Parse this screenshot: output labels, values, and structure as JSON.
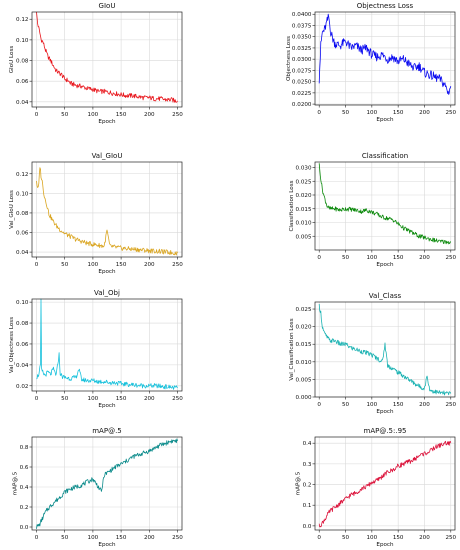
{
  "chart_data": [
    {
      "type": "line",
      "title": "GIoU",
      "xlabel": "Epoch",
      "ylabel": "GIoU Loss",
      "color": "#e8151b",
      "grid": true,
      "xlim": [
        -8,
        258
      ],
      "ylim": [
        0.035,
        0.127
      ],
      "xticks": [
        0,
        50,
        100,
        150,
        200,
        250
      ],
      "yticks": [
        0.04,
        0.06,
        0.08,
        0.1,
        0.12
      ],
      "ytick_labels": [
        "0.04",
        "0.06",
        "0.08",
        "0.10",
        "0.12"
      ],
      "x": [
        0,
        2,
        5,
        8,
        12,
        16,
        20,
        25,
        30,
        35,
        40,
        45,
        50,
        55,
        60,
        70,
        80,
        90,
        100,
        110,
        120,
        130,
        140,
        150,
        160,
        170,
        180,
        190,
        200,
        210,
        220,
        230,
        240,
        245,
        250
      ],
      "values": [
        0.126,
        0.116,
        0.109,
        0.101,
        0.097,
        0.09,
        0.084,
        0.08,
        0.075,
        0.07,
        0.068,
        0.066,
        0.062,
        0.061,
        0.058,
        0.056,
        0.055,
        0.053,
        0.052,
        0.05,
        0.05,
        0.049,
        0.048,
        0.047,
        0.046,
        0.046,
        0.045,
        0.044,
        0.044,
        0.043,
        0.043,
        0.042,
        0.042,
        0.041,
        0.041
      ]
    },
    {
      "type": "line",
      "title": "Objectness Loss",
      "xlabel": "Epoch",
      "ylabel": "Objectness Loss",
      "color": "#0b0bf0",
      "grid": true,
      "xlim": [
        -8,
        258
      ],
      "ylim": [
        0.0198,
        0.0405
      ],
      "xticks": [
        0,
        50,
        100,
        150,
        200,
        250
      ],
      "yticks": [
        0.02,
        0.0225,
        0.025,
        0.0275,
        0.03,
        0.0325,
        0.035,
        0.0375,
        0.04
      ],
      "ytick_labels": [
        "0.0200",
        "0.0225",
        "0.0250",
        "0.0275",
        "0.0300",
        "0.0325",
        "0.0350",
        "0.0375",
        "0.0400"
      ],
      "x": [
        0,
        3,
        6,
        10,
        14,
        18,
        22,
        26,
        30,
        40,
        50,
        60,
        70,
        80,
        90,
        100,
        110,
        120,
        130,
        140,
        150,
        160,
        170,
        180,
        190,
        200,
        210,
        220,
        230,
        240,
        245,
        250
      ],
      "values": [
        0.0255,
        0.033,
        0.036,
        0.0365,
        0.038,
        0.0395,
        0.036,
        0.0345,
        0.0335,
        0.033,
        0.034,
        0.0325,
        0.033,
        0.032,
        0.0325,
        0.031,
        0.0305,
        0.031,
        0.03,
        0.0305,
        0.0295,
        0.03,
        0.029,
        0.028,
        0.0285,
        0.027,
        0.0265,
        0.026,
        0.0255,
        0.024,
        0.0225,
        0.024
      ]
    },
    {
      "type": "line",
      "title": "Val_GIoU",
      "xlabel": "Epoch",
      "ylabel": "Val_GIoU Loss",
      "color": "#daa520",
      "grid": true,
      "xlim": [
        -8,
        258
      ],
      "ylim": [
        0.035,
        0.132
      ],
      "xticks": [
        0,
        50,
        100,
        150,
        200,
        250
      ],
      "yticks": [
        0.04,
        0.06,
        0.08,
        0.1,
        0.12
      ],
      "ytick_labels": [
        "0.04",
        "0.06",
        "0.08",
        "0.10",
        "0.12"
      ],
      "x": [
        0,
        2,
        4,
        6,
        8,
        10,
        14,
        18,
        22,
        26,
        30,
        35,
        40,
        50,
        60,
        70,
        80,
        90,
        100,
        110,
        120,
        125,
        130,
        140,
        150,
        170,
        190,
        210,
        230,
        250
      ],
      "values": [
        0.113,
        0.104,
        0.108,
        0.128,
        0.118,
        0.112,
        0.097,
        0.089,
        0.079,
        0.075,
        0.071,
        0.067,
        0.064,
        0.059,
        0.056,
        0.053,
        0.051,
        0.049,
        0.048,
        0.047,
        0.046,
        0.062,
        0.046,
        0.045,
        0.044,
        0.043,
        0.042,
        0.041,
        0.04,
        0.039
      ]
    },
    {
      "type": "line",
      "title": "Classification",
      "xlabel": "Epoch",
      "ylabel": "Classification Loss",
      "color": "#0d8a0d",
      "grid": true,
      "xlim": [
        -8,
        258
      ],
      "ylim": [
        0.0,
        0.032
      ],
      "xticks": [
        0,
        50,
        100,
        150,
        200,
        250
      ],
      "yticks": [
        0.005,
        0.01,
        0.015,
        0.02,
        0.025,
        0.03
      ],
      "ytick_labels": [
        "0.005",
        "0.010",
        "0.015",
        "0.020",
        "0.025",
        "0.030"
      ],
      "x": [
        0,
        3,
        6,
        10,
        15,
        20,
        30,
        40,
        50,
        60,
        70,
        80,
        90,
        100,
        110,
        120,
        130,
        140,
        150,
        160,
        170,
        180,
        190,
        200,
        210,
        220,
        230,
        240,
        250
      ],
      "values": [
        0.031,
        0.026,
        0.022,
        0.019,
        0.016,
        0.015,
        0.015,
        0.0145,
        0.015,
        0.0148,
        0.0145,
        0.014,
        0.0145,
        0.0138,
        0.013,
        0.012,
        0.0115,
        0.011,
        0.0095,
        0.008,
        0.007,
        0.006,
        0.005,
        0.0045,
        0.004,
        0.0035,
        0.003,
        0.003,
        0.0028
      ]
    },
    {
      "type": "line",
      "title": "Val_Obj",
      "xlabel": "Epoch",
      "ylabel": "Val_Objectness Loss",
      "color": "#17c1dc",
      "grid": true,
      "xlim": [
        -8,
        258
      ],
      "ylim": [
        0.015,
        0.103
      ],
      "xticks": [
        0,
        50,
        100,
        150,
        200,
        250
      ],
      "yticks": [
        0.02,
        0.04,
        0.06,
        0.08,
        0.1
      ],
      "ytick_labels": [
        "0.02",
        "0.04",
        "0.06",
        "0.08",
        "0.10"
      ],
      "x": [
        0,
        3,
        5,
        7,
        8,
        9,
        12,
        15,
        20,
        25,
        30,
        35,
        38,
        40,
        42,
        45,
        50,
        60,
        70,
        75,
        80,
        90,
        100,
        110,
        120,
        130,
        140,
        150,
        170,
        190,
        210,
        230,
        250
      ],
      "values": [
        0.028,
        0.03,
        0.033,
        0.04,
        0.101,
        0.035,
        0.032,
        0.03,
        0.033,
        0.031,
        0.036,
        0.03,
        0.042,
        0.05,
        0.032,
        0.029,
        0.028,
        0.027,
        0.028,
        0.036,
        0.026,
        0.025,
        0.025,
        0.024,
        0.024,
        0.023,
        0.023,
        0.022,
        0.021,
        0.02,
        0.02,
        0.019,
        0.018
      ]
    },
    {
      "type": "line",
      "title": "Val_Class",
      "xlabel": "Epoch",
      "ylabel": "Val_Classification Loss",
      "color": "#1ab2b2",
      "grid": true,
      "xlim": [
        -8,
        258
      ],
      "ylim": [
        0.0,
        0.027
      ],
      "xticks": [
        0,
        50,
        100,
        150,
        200,
        250
      ],
      "yticks": [
        0.0,
        0.005,
        0.01,
        0.015,
        0.02,
        0.025
      ],
      "ytick_labels": [
        "0.000",
        "0.005",
        "0.010",
        "0.015",
        "0.020",
        "0.025"
      ],
      "x": [
        0,
        3,
        6,
        10,
        15,
        20,
        30,
        40,
        50,
        60,
        70,
        80,
        90,
        100,
        110,
        120,
        125,
        130,
        140,
        150,
        160,
        170,
        180,
        190,
        200,
        205,
        210,
        220,
        230,
        240,
        250
      ],
      "values": [
        0.026,
        0.024,
        0.02,
        0.018,
        0.017,
        0.016,
        0.016,
        0.015,
        0.015,
        0.014,
        0.0135,
        0.013,
        0.0125,
        0.012,
        0.011,
        0.01,
        0.015,
        0.009,
        0.008,
        0.007,
        0.006,
        0.005,
        0.004,
        0.003,
        0.0025,
        0.006,
        0.002,
        0.0015,
        0.0012,
        0.001,
        0.001
      ]
    },
    {
      "type": "line",
      "title": "mAP@.5",
      "xlabel": "Epoch",
      "ylabel": "mAP@.5",
      "color": "#0a8a8a",
      "grid": true,
      "xlim": [
        -8,
        258
      ],
      "ylim": [
        -0.03,
        0.9
      ],
      "xticks": [
        0,
        50,
        100,
        150,
        200,
        250
      ],
      "yticks": [
        0.0,
        0.2,
        0.4,
        0.6,
        0.8
      ],
      "ytick_labels": [
        "0.0",
        "0.2",
        "0.4",
        "0.6",
        "0.8"
      ],
      "x": [
        0,
        5,
        10,
        15,
        20,
        30,
        40,
        50,
        60,
        70,
        80,
        90,
        100,
        110,
        115,
        120,
        130,
        140,
        150,
        160,
        170,
        180,
        190,
        200,
        210,
        220,
        230,
        240,
        250
      ],
      "values": [
        0.0,
        0.02,
        0.08,
        0.14,
        0.18,
        0.24,
        0.29,
        0.35,
        0.38,
        0.4,
        0.42,
        0.45,
        0.48,
        0.4,
        0.35,
        0.52,
        0.56,
        0.6,
        0.63,
        0.66,
        0.7,
        0.72,
        0.74,
        0.76,
        0.79,
        0.82,
        0.84,
        0.86,
        0.86
      ]
    },
    {
      "type": "line",
      "title": "mAP@.5:.95",
      "xlabel": "Epoch",
      "ylabel": "mAP@.5",
      "color": "#dc143c",
      "grid": true,
      "xlim": [
        -8,
        258
      ],
      "ylim": [
        -0.02,
        0.43
      ],
      "xticks": [
        0,
        50,
        100,
        150,
        200,
        250
      ],
      "yticks": [
        0.0,
        0.1,
        0.2,
        0.3,
        0.4
      ],
      "ytick_labels": [
        "0.0",
        "0.1",
        "0.2",
        "0.3",
        "0.4"
      ],
      "x": [
        0,
        5,
        10,
        15,
        20,
        30,
        40,
        50,
        60,
        70,
        80,
        90,
        100,
        110,
        120,
        130,
        140,
        150,
        160,
        170,
        180,
        190,
        200,
        210,
        220,
        230,
        240,
        250
      ],
      "values": [
        0.0,
        0.01,
        0.03,
        0.05,
        0.07,
        0.09,
        0.11,
        0.13,
        0.15,
        0.16,
        0.18,
        0.19,
        0.21,
        0.22,
        0.24,
        0.26,
        0.27,
        0.29,
        0.3,
        0.31,
        0.32,
        0.34,
        0.35,
        0.36,
        0.38,
        0.39,
        0.4,
        0.4
      ]
    }
  ]
}
